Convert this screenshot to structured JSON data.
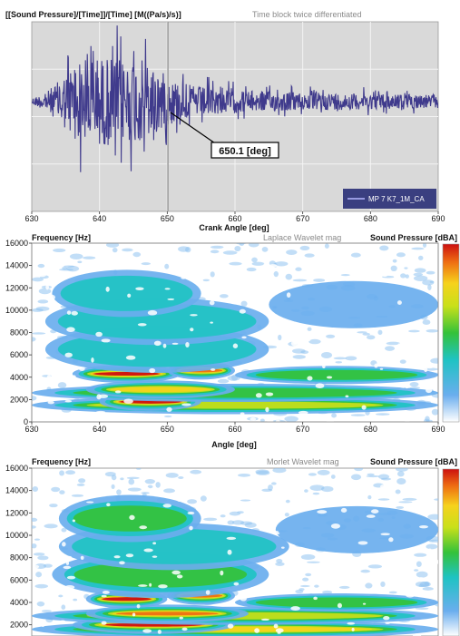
{
  "chart_data": [
    {
      "type": "line",
      "ylabel": "[[Sound Pressure]/[Time]]/[Time] [M((Pa/s)/s)]",
      "title": "Time block twice differentiated",
      "xlabel": "Crank Angle [deg]",
      "xlim": [
        630,
        690
      ],
      "xticks": [
        630,
        640,
        650,
        660,
        670,
        680,
        690
      ],
      "grid": true,
      "background": "#d9d9d9",
      "series": [
        {
          "name": "MP 7  K7_1M_CA",
          "color": "#3f3a8c",
          "envelope": {
            "x": [
              630,
              632,
              634,
              636,
              638,
              640,
              642,
              644,
              646,
              648,
              650,
              652,
              654,
              656,
              658,
              660,
              665,
              670,
              675,
              680,
              685,
              690
            ],
            "amplitude": [
              0.08,
              0.18,
              0.45,
              0.8,
              0.95,
              0.98,
              0.95,
              0.9,
              0.92,
              0.8,
              0.55,
              0.4,
              0.34,
              0.3,
              0.27,
              0.24,
              0.22,
              0.2,
              0.18,
              0.17,
              0.16,
              0.15
            ]
          }
        }
      ],
      "cursor": {
        "x": 650.1,
        "label": "650.1 [deg]"
      },
      "legend_position": "bottom-right"
    },
    {
      "type": "heatmap",
      "ylabel": "Frequency [Hz]",
      "title": "Laplace Wavelet mag",
      "colorbar_label": "Sound Pressure [dBA]",
      "xlabel": "Angle [deg]",
      "xlim": [
        630,
        690
      ],
      "ylim": [
        0,
        16000
      ],
      "xticks": [
        630,
        640,
        650,
        660,
        670,
        680,
        690
      ],
      "yticks": [
        0,
        2000,
        4000,
        6000,
        8000,
        10000,
        12000,
        14000,
        16000
      ],
      "bands": [
        {
          "f": 1500,
          "x0": 630,
          "x1": 690,
          "level": 0.75
        },
        {
          "f": 1800,
          "x0": 640,
          "x1": 655,
          "level": 1.0
        },
        {
          "f": 2600,
          "x0": 630,
          "x1": 690,
          "level": 0.6
        },
        {
          "f": 2900,
          "x0": 638,
          "x1": 660,
          "level": 0.85
        },
        {
          "f": 4300,
          "x0": 636,
          "x1": 652,
          "level": 1.0
        },
        {
          "f": 4600,
          "x0": 650,
          "x1": 660,
          "level": 0.95
        },
        {
          "f": 4200,
          "x0": 660,
          "x1": 690,
          "level": 0.5
        },
        {
          "f": 6500,
          "x0": 632,
          "x1": 665,
          "level": 0.45
        },
        {
          "f": 9000,
          "x0": 632,
          "x1": 665,
          "level": 0.4
        },
        {
          "f": 11500,
          "x0": 633,
          "x1": 655,
          "level": 0.45
        },
        {
          "f": 10500,
          "x0": 665,
          "x1": 690,
          "level": 0.15
        }
      ]
    },
    {
      "type": "heatmap",
      "ylabel": "Frequency [Hz]",
      "title": "Morlet Wavelet mag",
      "colorbar_label": "Sound Pressure [dBA]",
      "xlim": [
        630,
        690
      ],
      "ylim": [
        1000,
        16000
      ],
      "yticks": [
        2000,
        4000,
        6000,
        8000,
        10000,
        12000,
        14000,
        16000
      ],
      "bands": [
        {
          "f": 1600,
          "x0": 630,
          "x1": 690,
          "level": 0.8
        },
        {
          "f": 2000,
          "x0": 636,
          "x1": 660,
          "level": 1.0
        },
        {
          "f": 2800,
          "x0": 630,
          "x1": 690,
          "level": 0.65
        },
        {
          "f": 3000,
          "x0": 638,
          "x1": 662,
          "level": 0.9
        },
        {
          "f": 4300,
          "x0": 638,
          "x1": 650,
          "level": 1.0
        },
        {
          "f": 4600,
          "x0": 650,
          "x1": 660,
          "level": 0.95
        },
        {
          "f": 4000,
          "x0": 660,
          "x1": 690,
          "level": 0.55
        },
        {
          "f": 6500,
          "x0": 633,
          "x1": 665,
          "level": 0.5
        },
        {
          "f": 9000,
          "x0": 634,
          "x1": 668,
          "level": 0.45
        },
        {
          "f": 11500,
          "x0": 634,
          "x1": 655,
          "level": 0.5
        },
        {
          "f": 10500,
          "x0": 666,
          "x1": 690,
          "level": 0.2
        }
      ]
    }
  ]
}
